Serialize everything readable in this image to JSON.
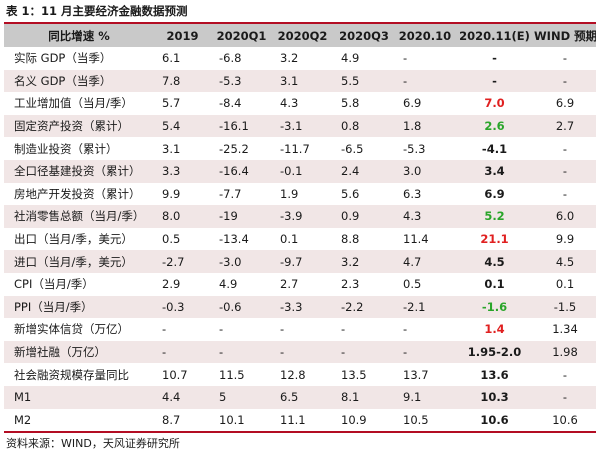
{
  "title": "表 1：11 月主要经济金融数据预测",
  "columns": [
    "同比增速 %",
    "2019",
    "2020Q1",
    "2020Q2",
    "2020Q3",
    "2020.10",
    "2020.11(E)",
    "WIND 预期"
  ],
  "rows": [
    {
      "label": "实际 GDP（当季）",
      "cells": [
        "6.1",
        "-6.8",
        "3.2",
        "4.9",
        "-",
        "-",
        "-"
      ],
      "pred_color": "black"
    },
    {
      "label": "名义 GDP（当季）",
      "cells": [
        "7.8",
        "-5.3",
        "3.1",
        "5.5",
        "-",
        "-",
        "-"
      ],
      "pred_color": "black"
    },
    {
      "label": "工业增加值（当月/季）",
      "cells": [
        "5.7",
        "-8.4",
        "4.3",
        "5.8",
        "6.9",
        "7.0",
        "6.9"
      ],
      "pred_color": "red"
    },
    {
      "label": "固定资产投资（累计）",
      "cells": [
        "5.4",
        "-16.1",
        "-3.1",
        "0.8",
        "1.8",
        "2.6",
        "2.7"
      ],
      "pred_color": "green"
    },
    {
      "label": "制造业投资（累计）",
      "cells": [
        "3.1",
        "-25.2",
        "-11.7",
        "-6.5",
        "-5.3",
        "-4.1",
        "-"
      ],
      "pred_color": "black"
    },
    {
      "label": "全口径基建投资（累计）",
      "cells": [
        "3.3",
        "-16.4",
        "-0.1",
        "2.4",
        "3.0",
        "3.4",
        "-"
      ],
      "pred_color": "black"
    },
    {
      "label": "房地产开发投资（累计）",
      "cells": [
        "9.9",
        "-7.7",
        "1.9",
        "5.6",
        "6.3",
        "6.9",
        "-"
      ],
      "pred_color": "black"
    },
    {
      "label": "社消零售总额（当月/季）",
      "cells": [
        "8.0",
        "-19",
        "-3.9",
        "0.9",
        "4.3",
        "5.2",
        "6.0"
      ],
      "pred_color": "green"
    },
    {
      "label": "出口（当月/季，美元）",
      "cells": [
        "0.5",
        "-13.4",
        "0.1",
        "8.8",
        "11.4",
        "21.1",
        "9.9"
      ],
      "pred_color": "red"
    },
    {
      "label": "进口（当月/季，美元）",
      "cells": [
        "-2.7",
        "-3.0",
        "-9.7",
        "3.2",
        "4.7",
        "4.5",
        "4.5"
      ],
      "pred_color": "black"
    },
    {
      "label": "CPI（当月/季）",
      "cells": [
        "2.9",
        "4.9",
        "2.7",
        "2.3",
        "0.5",
        "0.1",
        "0.1"
      ],
      "pred_color": "black"
    },
    {
      "label": "PPI（当月/季）",
      "cells": [
        "-0.3",
        "-0.6",
        "-3.3",
        "-2.2",
        "-2.1",
        "-1.6",
        "-1.5"
      ],
      "pred_color": "green"
    },
    {
      "label": "新增实体信贷（万亿）",
      "cells": [
        "-",
        "-",
        "-",
        "-",
        "-",
        "1.4",
        "1.34"
      ],
      "pred_color": "red"
    },
    {
      "label": "新增社融（万亿）",
      "cells": [
        "-",
        "-",
        "-",
        "-",
        "-",
        "1.95-2.0",
        "1.98"
      ],
      "pred_color": "black"
    },
    {
      "label": "社会融资规模存量同比",
      "cells": [
        "10.7",
        "11.5",
        "12.8",
        "13.5",
        "13.7",
        "13.6",
        "-"
      ],
      "pred_color": "black"
    },
    {
      "label": "M1",
      "cells": [
        "4.4",
        "5",
        "6.5",
        "8.1",
        "9.1",
        "10.3",
        "-"
      ],
      "pred_color": "black"
    },
    {
      "label": "M2",
      "cells": [
        "8.7",
        "10.1",
        "11.1",
        "10.9",
        "10.5",
        "10.6",
        "10.6"
      ],
      "pred_color": "black"
    }
  ],
  "source": "资料来源：WIND，天风证券研究所",
  "colors": {
    "header_bg": "#c9c9c9",
    "stripe_bg": "#f1e6e6",
    "rule": "#b30d23",
    "red": "#e02020",
    "green": "#2aa52a"
  }
}
